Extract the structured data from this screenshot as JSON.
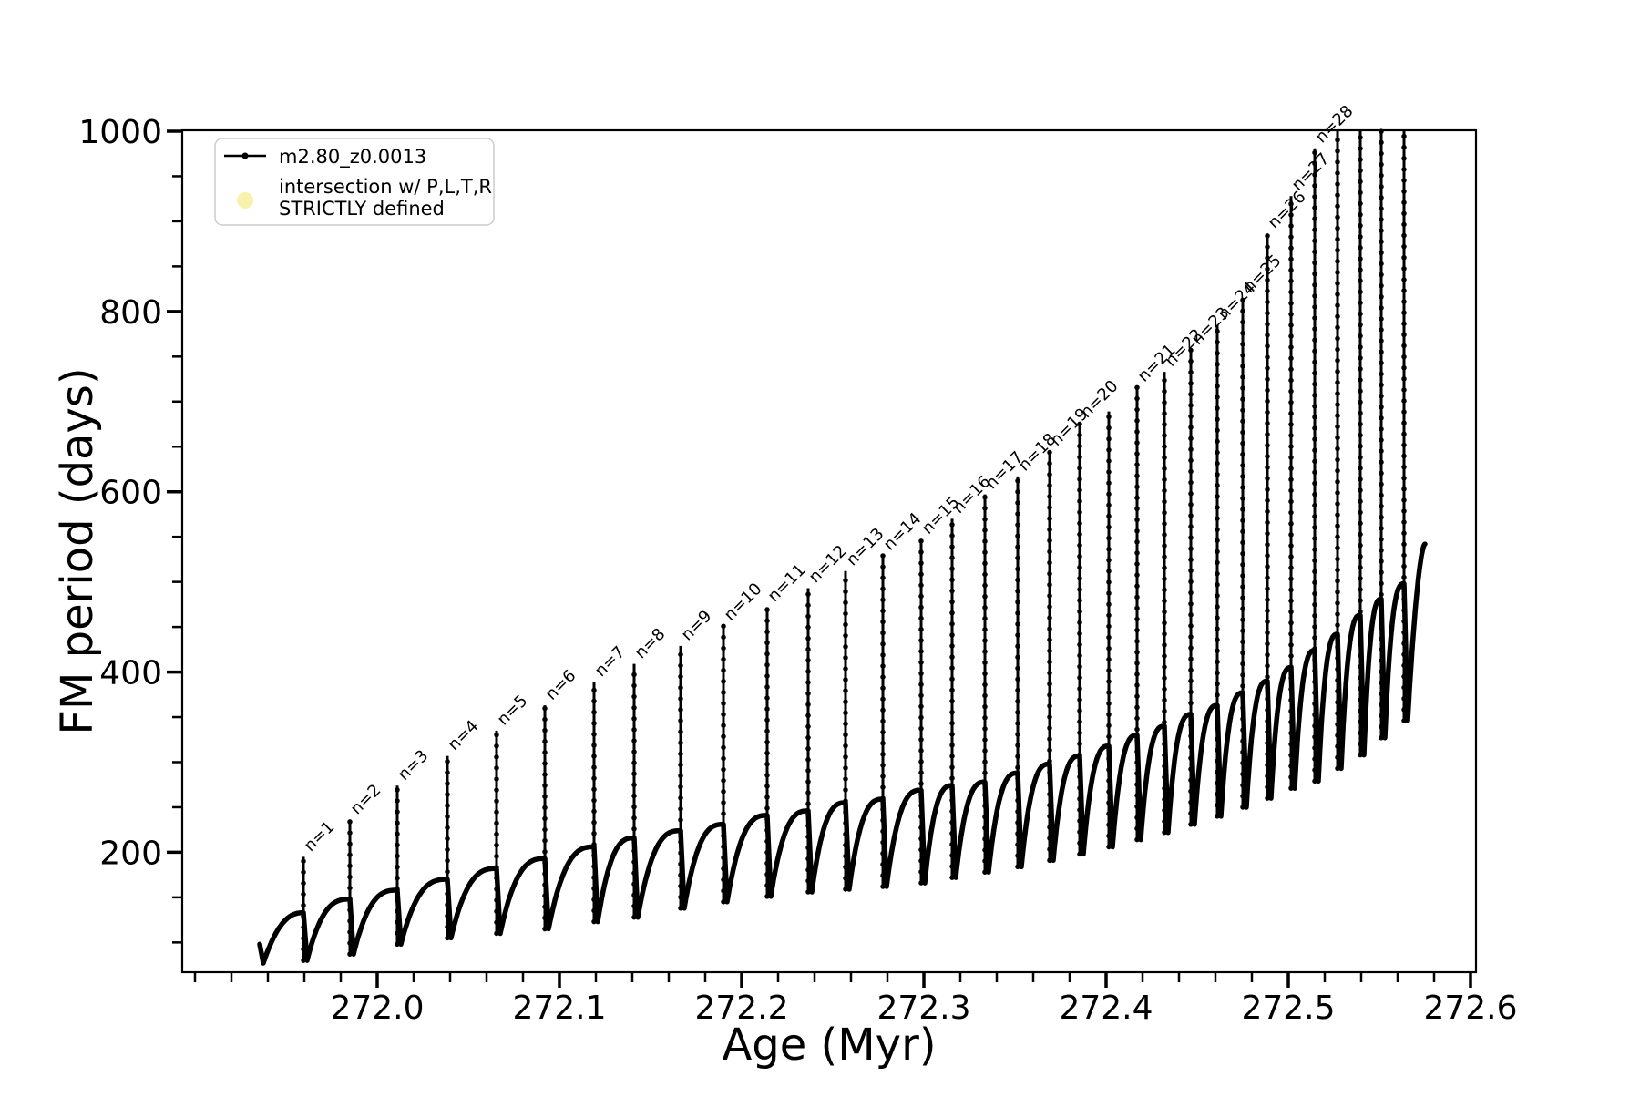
{
  "figure": {
    "background": "#ffffff",
    "line_color": "#000000",
    "legend_marker_color": "#f6f2a4"
  },
  "axes": {
    "xlabel": "Age (Myr)",
    "ylabel": "FM period (days)",
    "xlim": [
      271.893,
      272.603
    ],
    "ylim": [
      67,
      1001
    ],
    "x_major_ticks": [
      272.0,
      272.1,
      272.2,
      272.3,
      272.4,
      272.5,
      272.6
    ],
    "x_major_labels": [
      "272.0",
      "272.1",
      "272.2",
      "272.3",
      "272.4",
      "272.5",
      "272.6"
    ],
    "x_minor_start": 271.9,
    "x_minor_step": 0.02,
    "y_major_ticks": [
      200,
      400,
      600,
      800,
      1000
    ],
    "y_major_labels": [
      "200",
      "400",
      "600",
      "800",
      "1000"
    ],
    "y_minor_start": 100,
    "y_minor_step": 50,
    "grid": false
  },
  "legend": {
    "position": "upper-left",
    "entries": [
      {
        "type": "line-dot",
        "label": "m2.80_z0.0013",
        "color": "#000000"
      },
      {
        "type": "big-dot",
        "label_lines": [
          "intersection w/ P,L,T,R",
          "STRICTLY defined"
        ],
        "color": "#f6f2a4"
      }
    ]
  },
  "chart_data": {
    "type": "line",
    "title": "",
    "xlabel": "Age (Myr)",
    "ylabel": "FM period (days)",
    "series_name": "m2.80_z0.0013",
    "legend_position": "upper-left",
    "clip_value": 1000,
    "baseline_start": {
      "age": 271.9375,
      "hook_from": 98,
      "period": 77
    },
    "baseline_end": {
      "age": 272.575,
      "period": 542
    },
    "events": [
      {
        "label": "n=1",
        "age": 271.9595,
        "peak": 195,
        "min": 80,
        "base_before": 133,
        "clipped": false
      },
      {
        "label": "n=2",
        "age": 271.985,
        "peak": 236,
        "min": 87,
        "base_before": 148,
        "clipped": false
      },
      {
        "label": "n=3",
        "age": 272.011,
        "peak": 274,
        "min": 98,
        "base_before": 158,
        "clipped": false
      },
      {
        "label": "n=4",
        "age": 272.0385,
        "peak": 307,
        "min": 105,
        "base_before": 170,
        "clipped": false
      },
      {
        "label": "n=5",
        "age": 272.0655,
        "peak": 335,
        "min": 110,
        "base_before": 182,
        "clipped": false
      },
      {
        "label": "n=6",
        "age": 272.092,
        "peak": 363,
        "min": 115,
        "base_before": 193,
        "clipped": false
      },
      {
        "label": "n=7",
        "age": 272.119,
        "peak": 389,
        "min": 123,
        "base_before": 206,
        "clipped": false
      },
      {
        "label": "n=8",
        "age": 272.141,
        "peak": 409,
        "min": 128,
        "base_before": 216,
        "clipped": false
      },
      {
        "label": "n=9",
        "age": 272.1665,
        "peak": 429,
        "min": 138,
        "base_before": 224,
        "clipped": false
      },
      {
        "label": "n=10",
        "age": 272.19,
        "peak": 451,
        "min": 145,
        "base_before": 231,
        "clipped": false
      },
      {
        "label": "n=11",
        "age": 272.214,
        "peak": 472,
        "min": 151,
        "base_before": 241,
        "clipped": false
      },
      {
        "label": "n=12",
        "age": 272.2365,
        "peak": 493,
        "min": 156,
        "base_before": 246,
        "clipped": false
      },
      {
        "label": "n=13",
        "age": 272.257,
        "peak": 512,
        "min": 159,
        "base_before": 255,
        "clipped": false
      },
      {
        "label": "n=14",
        "age": 272.2775,
        "peak": 529,
        "min": 162,
        "base_before": 259,
        "clipped": false
      },
      {
        "label": "n=15",
        "age": 272.2985,
        "peak": 547,
        "min": 166,
        "base_before": 269,
        "clipped": false
      },
      {
        "label": "n=16",
        "age": 272.3155,
        "peak": 570,
        "min": 172,
        "base_before": 274,
        "clipped": false
      },
      {
        "label": "n=17",
        "age": 272.3335,
        "peak": 597,
        "min": 178,
        "base_before": 278,
        "clipped": false
      },
      {
        "label": "n=18",
        "age": 272.3515,
        "peak": 617,
        "min": 184,
        "base_before": 288,
        "clipped": false
      },
      {
        "label": "n=19",
        "age": 272.369,
        "peak": 645,
        "min": 191,
        "base_before": 298,
        "clipped": false
      },
      {
        "label": "n=20",
        "age": 272.3855,
        "peak": 676,
        "min": 198,
        "base_before": 307,
        "clipped": false
      },
      {
        "label": null,
        "age": 272.4015,
        "peak": 689,
        "min": 206,
        "base_before": 318,
        "clipped": false
      },
      {
        "label": "n=21",
        "age": 272.417,
        "peak": 716,
        "min": 214,
        "base_before": 330,
        "clipped": false
      },
      {
        "label": "n=22",
        "age": 272.432,
        "peak": 733,
        "min": 222,
        "base_before": 340,
        "clipped": false
      },
      {
        "label": "n=23",
        "age": 272.4465,
        "peak": 757,
        "min": 231,
        "base_before": 353,
        "clipped": false
      },
      {
        "label": "n=24",
        "age": 272.461,
        "peak": 785,
        "min": 240,
        "base_before": 363,
        "clipped": false
      },
      {
        "label": "n=25",
        "age": 272.475,
        "peak": 815,
        "min": 250,
        "base_before": 377,
        "clipped": false
      },
      {
        "label": "n=26",
        "age": 272.4885,
        "peak": 886,
        "min": 260,
        "base_before": 390,
        "clipped": false
      },
      {
        "label": "n=27",
        "age": 272.5015,
        "peak": 928,
        "min": 271,
        "base_before": 405,
        "clipped": false
      },
      {
        "label": "n=28",
        "age": 272.5145,
        "peak": 981,
        "min": 279,
        "base_before": 424,
        "clipped": false
      },
      {
        "label": null,
        "age": 272.527,
        "peak": 1005,
        "min": 293,
        "base_before": 442,
        "clipped": true
      },
      {
        "label": null,
        "age": 272.5395,
        "peak": 1005,
        "min": 308,
        "base_before": 463,
        "clipped": true
      },
      {
        "label": null,
        "age": 272.551,
        "peak": 1005,
        "min": 327,
        "base_before": 481,
        "clipped": true
      },
      {
        "label": null,
        "age": 272.5635,
        "peak": 1005,
        "min": 346,
        "base_before": 498,
        "clipped": true
      }
    ]
  }
}
